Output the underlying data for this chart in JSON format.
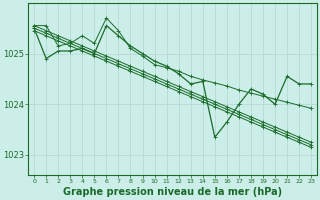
{
  "background_color": "#cceee8",
  "grid_color": "#b8ddd8",
  "line_color": "#1a6b2a",
  "title": "Graphe pression niveau de la mer (hPa)",
  "title_fontsize": 7.0,
  "xlim": [
    -0.5,
    23.5
  ],
  "ylim": [
    1022.6,
    1026.0
  ],
  "yticks": [
    1023,
    1024,
    1025
  ],
  "xticks": [
    0,
    1,
    2,
    3,
    4,
    5,
    6,
    7,
    8,
    9,
    10,
    11,
    12,
    13,
    14,
    15,
    16,
    17,
    18,
    19,
    20,
    21,
    22,
    23
  ],
  "series_main": [
    1025.5,
    1024.9,
    1025.05,
    1025.05,
    1025.1,
    1025.0,
    1025.55,
    1025.35,
    1025.15,
    1025.0,
    1024.85,
    1024.75,
    1024.6,
    1024.4,
    1024.45,
    1023.35,
    1023.65,
    1024.0,
    1024.3,
    1024.2,
    1024.0,
    1024.55,
    1024.4,
    1024.4
  ],
  "series_trend1": [
    1025.45,
    1025.35,
    1025.25,
    1025.15,
    1025.05,
    1024.95,
    1024.85,
    1024.75,
    1024.65,
    1024.55,
    1024.45,
    1024.35,
    1024.25,
    1024.15,
    1024.05,
    1023.95,
    1023.85,
    1023.75,
    1023.65,
    1023.55,
    1023.45,
    1023.35,
    1023.25,
    1023.15
  ],
  "series_trend2": [
    1025.5,
    1025.4,
    1025.3,
    1025.2,
    1025.1,
    1025.0,
    1024.9,
    1024.8,
    1024.7,
    1024.6,
    1024.5,
    1024.4,
    1024.3,
    1024.2,
    1024.1,
    1024.0,
    1023.9,
    1023.8,
    1023.7,
    1023.6,
    1023.5,
    1023.4,
    1023.3,
    1023.2
  ],
  "series_trend3": [
    1025.55,
    1025.45,
    1025.35,
    1025.25,
    1025.15,
    1025.05,
    1024.95,
    1024.85,
    1024.75,
    1024.65,
    1024.55,
    1024.45,
    1024.35,
    1024.25,
    1024.15,
    1024.05,
    1023.95,
    1023.85,
    1023.75,
    1023.65,
    1023.55,
    1023.45,
    1023.35,
    1023.25
  ],
  "series_noisy": [
    1025.55,
    1025.55,
    1025.15,
    1025.2,
    1025.35,
    1025.2,
    1025.7,
    1025.45,
    1025.1,
    1024.95,
    1024.78,
    1024.72,
    1024.65,
    1024.55,
    1024.48,
    1024.42,
    1024.36,
    1024.28,
    1024.22,
    1024.16,
    1024.1,
    1024.04,
    1023.98,
    1023.92
  ]
}
